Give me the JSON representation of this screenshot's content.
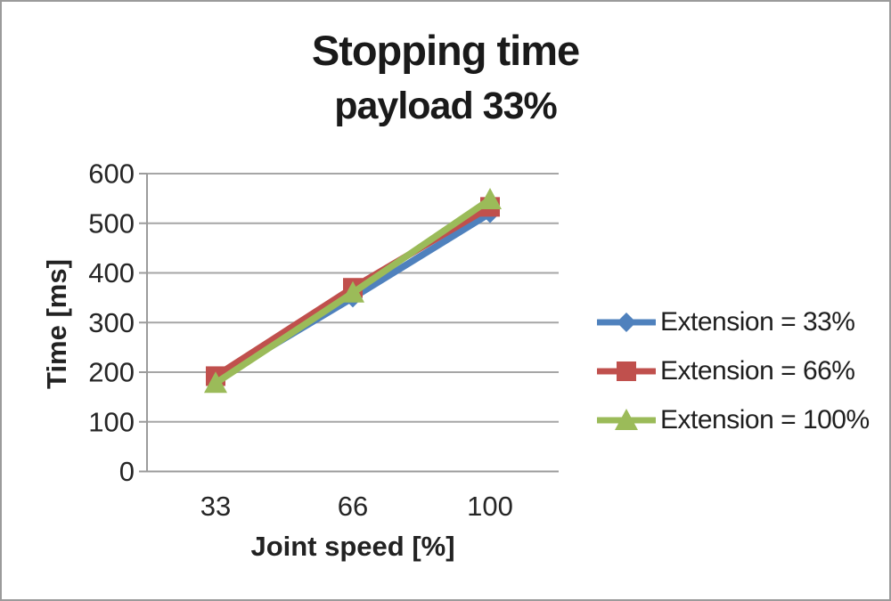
{
  "chart_data": {
    "type": "line",
    "title": "Stopping time",
    "subtitle": "payload 33%",
    "xlabel": "Joint speed [%]",
    "ylabel": "Time [ms]",
    "categories": [
      "33",
      "66",
      "100"
    ],
    "series": [
      {
        "name": "Extension = 33%",
        "color": "#4F81BD",
        "marker": "diamond",
        "values": [
          185,
          350,
          520
        ]
      },
      {
        "name": "Extension = 66%",
        "color": "#C0504D",
        "marker": "square",
        "values": [
          192,
          370,
          533
        ]
      },
      {
        "name": "Extension = 100%",
        "color": "#9BBB59",
        "marker": "triangle",
        "values": [
          178,
          360,
          548
        ]
      }
    ],
    "ylim": [
      0,
      600
    ],
    "ytick_step": 100,
    "grid": true,
    "legend_position": "right",
    "gridline_color": "#a6a6a6",
    "axis_color": "#9b9b9b",
    "tick_label_color": "#262626"
  }
}
